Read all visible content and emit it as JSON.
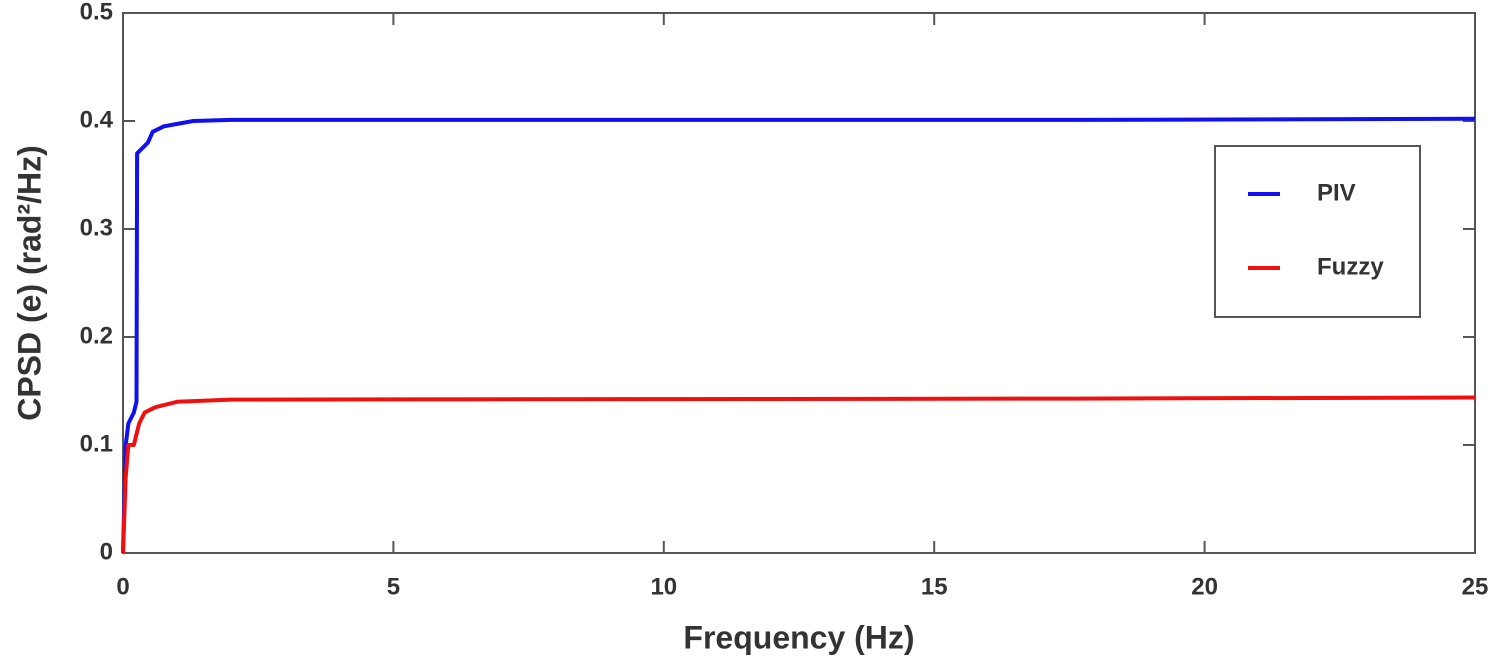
{
  "chart_data": {
    "type": "line",
    "xlabel": "Frequency (Hz)",
    "ylabel": "CPSD (e) (rad²/Hz)",
    "xlim": [
      0,
      25
    ],
    "xticks": [
      0,
      5,
      10,
      15,
      20,
      25
    ],
    "ylim": [
      0,
      0.5
    ],
    "yticks": [
      0,
      0.1,
      0.2,
      0.3,
      0.4,
      0.5
    ],
    "grid": false,
    "legend": "upper right",
    "series": [
      {
        "name": "PIV",
        "color": "#1010f0",
        "x": [
          0,
          0.05,
          0.1,
          0.2,
          0.25,
          0.26,
          0.46,
          0.55,
          0.75,
          1.3,
          2,
          17.6,
          25
        ],
        "values": [
          0,
          0.1,
          0.12,
          0.13,
          0.14,
          0.37,
          0.38,
          0.39,
          0.395,
          0.4,
          0.401,
          0.401,
          0.402
        ]
      },
      {
        "name": "Fuzzy",
        "color": "#f01010",
        "x": [
          0,
          0.05,
          0.1,
          0.2,
          0.3,
          0.4,
          0.6,
          1.0,
          2,
          17.6,
          25
        ],
        "values": [
          0,
          0.07,
          0.1,
          0.1,
          0.12,
          0.13,
          0.135,
          0.14,
          0.142,
          0.143,
          0.144
        ]
      }
    ]
  }
}
